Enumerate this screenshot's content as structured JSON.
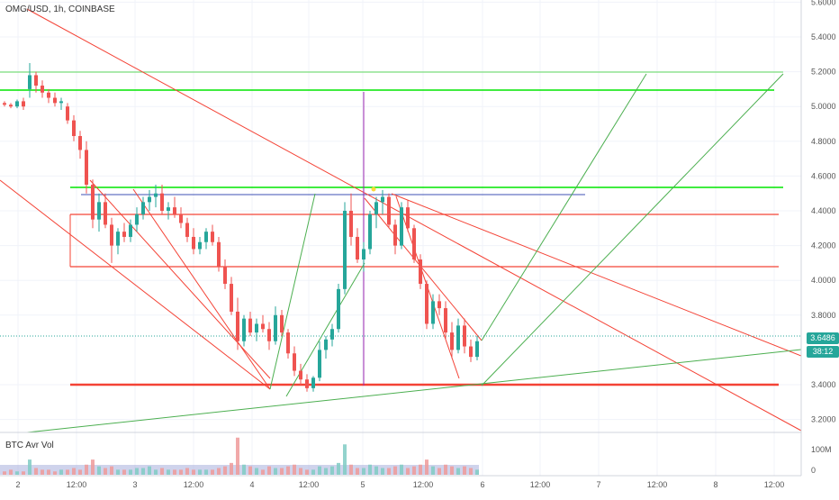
{
  "header": {
    "symbol_line": "OMG/USD, 1h, COINBASE"
  },
  "volume_pane": {
    "label": "BTC Avr Vol",
    "axis_ticks": [
      "100M",
      "0"
    ]
  },
  "price_axis": {
    "current_price": "3.6486",
    "countdown": "38:12",
    "current_color": "#26a69a"
  },
  "colors": {
    "up_candle": "#26a69a",
    "down_candle": "#ef5350",
    "green_line": "#4caf50",
    "bright_green_line": "#00e600",
    "red_line": "#f44336",
    "purple_line": "#9c27b0",
    "blue_line": "#3f51b5"
  },
  "chart_data": {
    "type": "candlestick",
    "y_ticks": [
      5.6,
      5.4,
      5.2,
      5.0,
      4.8,
      4.6,
      4.4,
      4.2,
      4.0,
      3.8,
      3.4,
      3.2
    ],
    "x_ticks": [
      "2",
      "12:00",
      "3",
      "12:00",
      "4",
      "12:00",
      "5",
      "12:00",
      "6",
      "12:00",
      "7",
      "12:00",
      "8",
      "12:00"
    ],
    "ylim": [
      3.1,
      5.65
    ],
    "candles": [
      [
        5.02,
        5.03,
        5.0,
        5.01
      ],
      [
        5.01,
        5.02,
        4.99,
        5.0
      ],
      [
        5.0,
        5.04,
        4.99,
        5.03
      ],
      [
        5.03,
        5.05,
        4.98,
        5.0
      ],
      [
        5.1,
        5.25,
        5.05,
        5.18
      ],
      [
        5.18,
        5.2,
        5.08,
        5.12
      ],
      [
        5.12,
        5.15,
        5.05,
        5.08
      ],
      [
        5.08,
        5.1,
        5.02,
        5.05
      ],
      [
        5.05,
        5.08,
        5.0,
        5.02
      ],
      [
        5.02,
        5.05,
        4.98,
        5.03
      ],
      [
        5.0,
        5.02,
        4.9,
        4.92
      ],
      [
        4.92,
        4.95,
        4.8,
        4.83
      ],
      [
        4.83,
        4.86,
        4.7,
        4.75
      ],
      [
        4.75,
        4.8,
        4.5,
        4.55
      ],
      [
        4.55,
        4.58,
        4.3,
        4.35
      ],
      [
        4.35,
        4.5,
        4.28,
        4.45
      ],
      [
        4.45,
        4.5,
        4.3,
        4.32
      ],
      [
        4.32,
        4.36,
        4.1,
        4.2
      ],
      [
        4.2,
        4.3,
        4.15,
        4.28
      ],
      [
        4.28,
        4.33,
        4.22,
        4.25
      ],
      [
        4.25,
        4.35,
        4.22,
        4.32
      ],
      [
        4.32,
        4.42,
        4.28,
        4.38
      ],
      [
        4.38,
        4.48,
        4.35,
        4.45
      ],
      [
        4.45,
        4.52,
        4.4,
        4.48
      ],
      [
        4.48,
        4.55,
        4.42,
        4.5
      ],
      [
        4.5,
        4.55,
        4.38,
        4.4
      ],
      [
        4.4,
        4.45,
        4.35,
        4.42
      ],
      [
        4.42,
        4.48,
        4.36,
        4.38
      ],
      [
        4.38,
        4.42,
        4.3,
        4.33
      ],
      [
        4.33,
        4.36,
        4.22,
        4.25
      ],
      [
        4.25,
        4.3,
        4.15,
        4.18
      ],
      [
        4.18,
        4.25,
        4.15,
        4.22
      ],
      [
        4.22,
        4.3,
        4.18,
        4.28
      ],
      [
        4.28,
        4.32,
        4.2,
        4.22
      ],
      [
        4.22,
        4.25,
        4.05,
        4.08
      ],
      [
        4.08,
        4.12,
        3.95,
        3.98
      ],
      [
        3.98,
        4.02,
        3.8,
        3.82
      ],
      [
        3.82,
        3.9,
        3.6,
        3.65
      ],
      [
        3.65,
        3.8,
        3.62,
        3.78
      ],
      [
        3.78,
        3.82,
        3.68,
        3.7
      ],
      [
        3.7,
        3.78,
        3.65,
        3.75
      ],
      [
        3.75,
        3.8,
        3.7,
        3.72
      ],
      [
        3.72,
        3.76,
        3.6,
        3.65
      ],
      [
        3.65,
        3.85,
        3.63,
        3.8
      ],
      [
        3.8,
        3.83,
        3.68,
        3.7
      ],
      [
        3.7,
        3.72,
        3.55,
        3.58
      ],
      [
        3.58,
        3.62,
        3.45,
        3.48
      ],
      [
        3.48,
        3.52,
        3.4,
        3.43
      ],
      [
        3.43,
        3.46,
        3.36,
        3.38
      ],
      [
        3.38,
        3.45,
        3.36,
        3.44
      ],
      [
        3.44,
        3.65,
        3.42,
        3.6
      ],
      [
        3.6,
        3.68,
        3.55,
        3.66
      ],
      [
        3.66,
        3.75,
        3.62,
        3.72
      ],
      [
        3.72,
        3.98,
        3.7,
        3.95
      ],
      [
        3.95,
        4.45,
        3.92,
        4.4
      ],
      [
        4.4,
        4.5,
        4.2,
        4.25
      ],
      [
        4.25,
        4.3,
        4.1,
        4.12
      ],
      [
        4.12,
        4.22,
        4.05,
        4.18
      ],
      [
        4.18,
        4.4,
        4.15,
        4.38
      ],
      [
        4.38,
        4.48,
        4.3,
        4.45
      ],
      [
        4.45,
        4.52,
        4.38,
        4.48
      ],
      [
        4.48,
        4.5,
        4.3,
        4.32
      ],
      [
        4.32,
        4.35,
        4.15,
        4.2
      ],
      [
        4.2,
        4.45,
        4.18,
        4.42
      ],
      [
        4.42,
        4.46,
        4.28,
        4.3
      ],
      [
        4.3,
        4.32,
        4.1,
        4.12
      ],
      [
        4.12,
        4.15,
        3.95,
        3.98
      ],
      [
        3.98,
        4.0,
        3.72,
        3.75
      ],
      [
        3.75,
        3.92,
        3.72,
        3.88
      ],
      [
        3.88,
        3.92,
        3.8,
        3.84
      ],
      [
        3.84,
        3.88,
        3.66,
        3.7
      ],
      [
        3.7,
        3.76,
        3.55,
        3.6
      ],
      [
        3.6,
        3.78,
        3.58,
        3.74
      ],
      [
        3.74,
        3.78,
        3.58,
        3.62
      ],
      [
        3.62,
        3.66,
        3.53,
        3.56
      ],
      [
        3.56,
        3.68,
        3.54,
        3.65
      ]
    ],
    "volume": [
      2,
      3,
      2,
      2,
      9,
      4,
      3,
      3,
      2,
      3,
      3,
      4,
      3,
      6,
      9,
      5,
      4,
      5,
      3,
      3,
      3,
      4,
      4,
      5,
      3,
      4,
      3,
      3,
      3,
      4,
      3,
      3,
      3,
      3,
      4,
      5,
      7,
      22,
      6,
      5,
      4,
      3,
      5,
      4,
      4,
      5,
      6,
      4,
      3,
      3,
      5,
      4,
      5,
      7,
      18,
      6,
      4,
      4,
      6,
      5,
      4,
      4,
      5,
      6,
      4,
      5,
      6,
      9,
      5,
      4,
      6,
      5,
      4,
      5,
      4,
      3
    ]
  }
}
